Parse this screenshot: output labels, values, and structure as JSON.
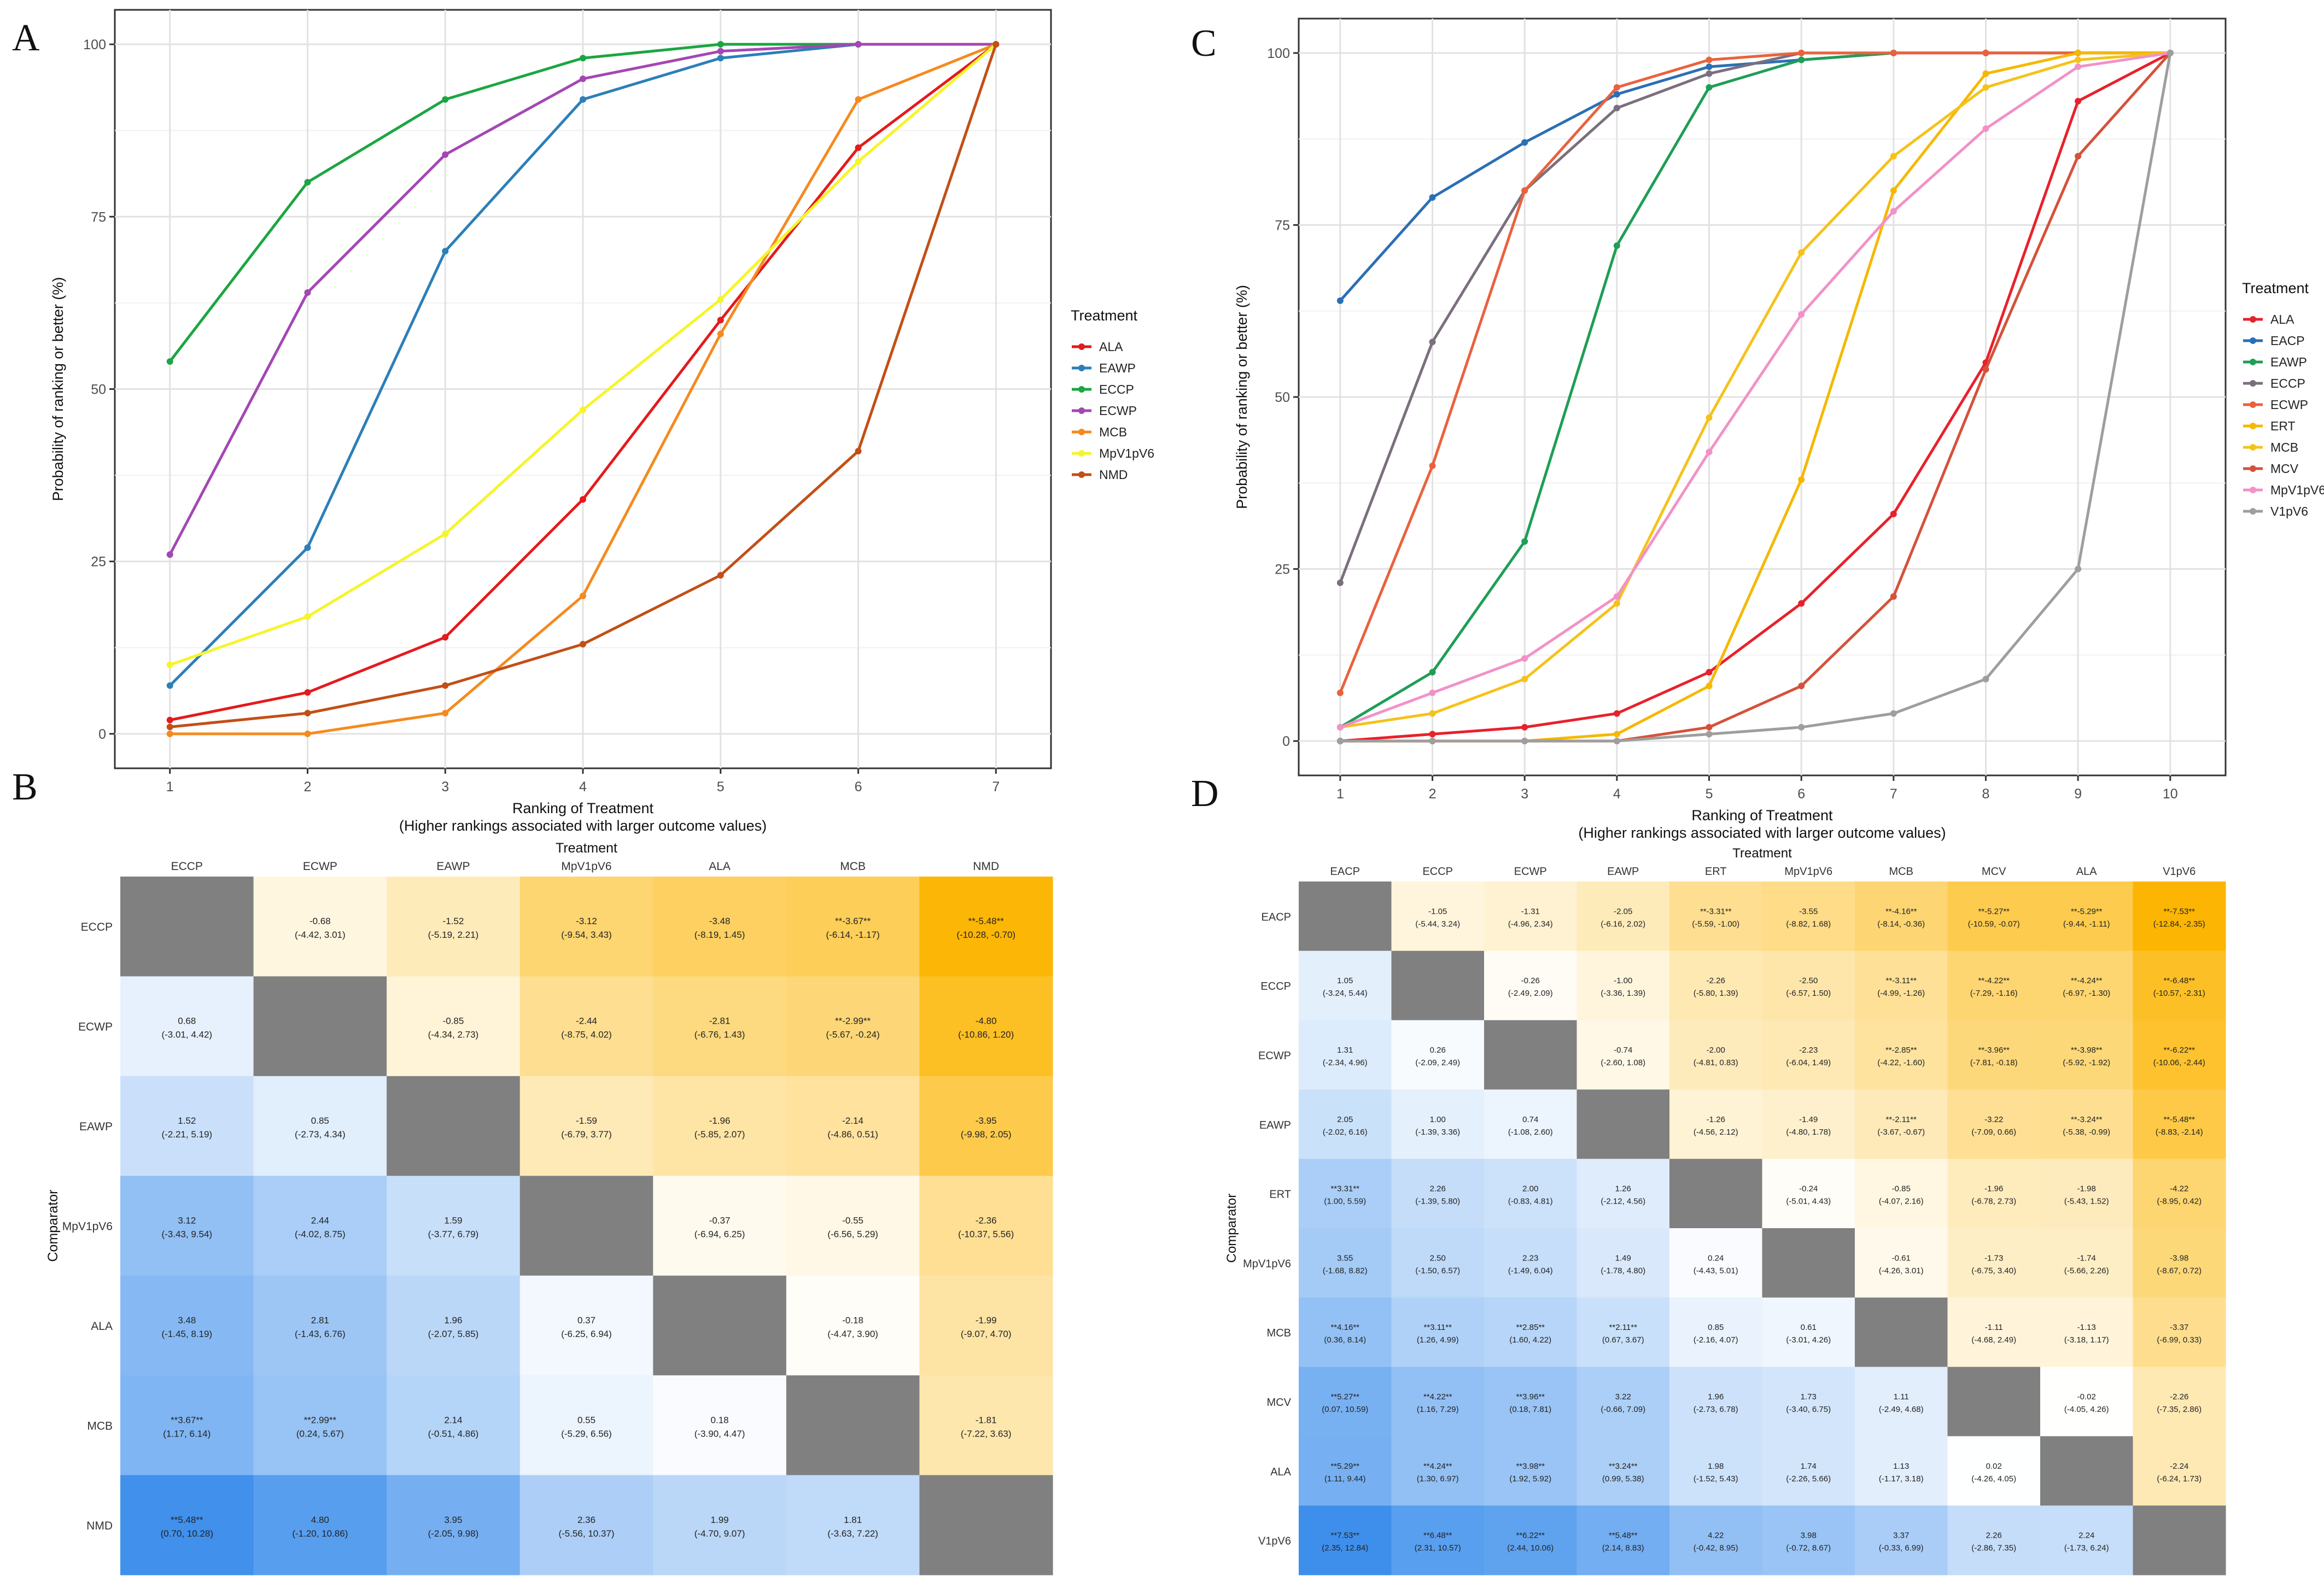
{
  "panels": {
    "a": {
      "letter": "A"
    },
    "b": {
      "letter": "B"
    },
    "c": {
      "letter": "C"
    },
    "d": {
      "letter": "D"
    }
  },
  "chart_data": [
    {
      "id": "A",
      "type": "line",
      "xlabel": "Ranking of Treatment",
      "xlabel2": "(Higher rankings associated with larger outcome values)",
      "ylabel": "Probability of ranking or better (%)",
      "legend_title": "Treatment",
      "x": [
        1,
        2,
        3,
        4,
        5,
        6,
        7
      ],
      "xlim": [
        0.6,
        7.4
      ],
      "ylim": [
        -5,
        105
      ],
      "yticks": [
        0,
        25,
        50,
        75,
        100
      ],
      "series": [
        {
          "name": "ALA",
          "color": "#e41a1c",
          "values": [
            2,
            6,
            14,
            34,
            60,
            85,
            100
          ]
        },
        {
          "name": "EAWP",
          "color": "#2c7fb8",
          "values": [
            7,
            27,
            70,
            92,
            98,
            100,
            100
          ]
        },
        {
          "name": "ECCP",
          "color": "#1ba641",
          "values": [
            54,
            80,
            92,
            98,
            100,
            100,
            100
          ]
        },
        {
          "name": "ECWP",
          "color": "#a347b3",
          "values": [
            26,
            64,
            84,
            95,
            99,
            100,
            100
          ]
        },
        {
          "name": "MCB",
          "color": "#f58a1f",
          "values": [
            0,
            0,
            3,
            20,
            58,
            92,
            100
          ]
        },
        {
          "name": "MpV1pV6",
          "color": "#f5f52a",
          "values": [
            10,
            17,
            29,
            47,
            63,
            83,
            100
          ]
        },
        {
          "name": "NMD",
          "color": "#c24f16",
          "values": [
            1,
            3,
            7,
            13,
            23,
            41,
            100
          ]
        }
      ]
    },
    {
      "id": "C",
      "type": "line",
      "xlabel": "Ranking of Treatment",
      "xlabel2": "(Higher rankings associated with larger outcome values)",
      "ylabel": "Probability of ranking or better (%)",
      "legend_title": "Treatment",
      "x": [
        1,
        2,
        3,
        4,
        5,
        6,
        7,
        8,
        9,
        10
      ],
      "xlim": [
        0.55,
        10.6
      ],
      "ylim": [
        -5,
        105
      ],
      "yticks": [
        0,
        25,
        50,
        75,
        100
      ],
      "series": [
        {
          "name": "ALA",
          "color": "#e8212b",
          "values": [
            0,
            1,
            2,
            4,
            10,
            20,
            33,
            55,
            93,
            100
          ]
        },
        {
          "name": "EACP",
          "color": "#2a6fb5",
          "values": [
            64,
            79,
            87,
            94,
            98,
            99,
            100,
            100,
            100,
            100
          ]
        },
        {
          "name": "EAWP",
          "color": "#1e9e56",
          "values": [
            2,
            10,
            29,
            72,
            95,
            99,
            100,
            100,
            100,
            100
          ]
        },
        {
          "name": "ECCP",
          "color": "#7b6f7d",
          "values": [
            23,
            58,
            80,
            92,
            97,
            100,
            100,
            100,
            100,
            100
          ]
        },
        {
          "name": "ECWP",
          "color": "#e9623e",
          "values": [
            7,
            40,
            80,
            95,
            99,
            100,
            100,
            100,
            100,
            100
          ]
        },
        {
          "name": "ERT",
          "color": "#f5b800",
          "values": [
            0,
            0,
            0,
            1,
            8,
            38,
            80,
            97,
            100,
            100
          ]
        },
        {
          "name": "MCB",
          "color": "#f5c21a",
          "values": [
            2,
            4,
            9,
            20,
            47,
            71,
            85,
            95,
            99,
            100
          ]
        },
        {
          "name": "MCV",
          "color": "#d4523a",
          "values": [
            0,
            0,
            0,
            0,
            2,
            8,
            21,
            54,
            85,
            100
          ]
        },
        {
          "name": "MpV1pV6",
          "color": "#f291c8",
          "values": [
            2,
            7,
            12,
            21,
            42,
            62,
            77,
            89,
            98,
            100
          ]
        },
        {
          "name": "V1pV6",
          "color": "#9e9e9e",
          "values": [
            0,
            0,
            0,
            0,
            1,
            2,
            4,
            9,
            25,
            100
          ]
        }
      ]
    },
    {
      "id": "B",
      "type": "heatmap",
      "title": "Treatment",
      "ylabel": "Comparator",
      "treatments": [
        "ECCP",
        "ECWP",
        "EAWP",
        "MpV1pV6",
        "ALA",
        "MCB",
        "NMD"
      ],
      "comparators": [
        "ECCP",
        "ECWP",
        "EAWP",
        "MpV1pV6",
        "ALA",
        "MCB",
        "NMD"
      ],
      "values": [
        [
          null,
          -0.68,
          -1.52,
          -3.12,
          -3.48,
          -3.67,
          -5.48
        ],
        [
          0.68,
          null,
          -0.85,
          -2.44,
          -2.81,
          -2.99,
          -4.8
        ],
        [
          1.52,
          0.85,
          null,
          -1.59,
          -1.96,
          -2.14,
          -3.95
        ],
        [
          3.12,
          2.44,
          1.59,
          null,
          -0.37,
          -0.55,
          -2.36
        ],
        [
          3.48,
          2.81,
          1.96,
          0.37,
          null,
          -0.18,
          -1.99
        ],
        [
          3.67,
          2.99,
          2.14,
          0.55,
          0.18,
          null,
          -1.81
        ],
        [
          5.48,
          4.8,
          3.95,
          2.36,
          1.99,
          1.81,
          null
        ]
      ],
      "labels": [
        [
          null,
          "-0.68",
          "-1.52",
          "-3.12",
          "-3.48",
          "**-3.67**",
          "**-5.48**"
        ],
        [
          "0.68",
          null,
          "-0.85",
          "-2.44",
          "-2.81",
          "**-2.99**",
          "-4.80"
        ],
        [
          "1.52",
          "0.85",
          null,
          "-1.59",
          "-1.96",
          "-2.14",
          "-3.95"
        ],
        [
          "3.12",
          "2.44",
          "1.59",
          null,
          "-0.37",
          "-0.55",
          "-2.36"
        ],
        [
          "3.48",
          "2.81",
          "1.96",
          "0.37",
          null,
          "-0.18",
          "-1.99"
        ],
        [
          "**3.67**",
          "**2.99**",
          "2.14",
          "0.55",
          "0.18",
          null,
          "-1.81"
        ],
        [
          "**5.48**",
          "4.80",
          "3.95",
          "2.36",
          "1.99",
          "1.81",
          null
        ]
      ],
      "ci": [
        [
          null,
          "(-4.42, 3.01)",
          "(-5.19, 2.21)",
          "(-9.54, 3.43)",
          "(-8.19, 1.45)",
          "(-6.14, -1.17)",
          "(-10.28, -0.70)"
        ],
        [
          "(-3.01, 4.42)",
          null,
          "(-4.34, 2.73)",
          "(-8.75, 4.02)",
          "(-6.76, 1.43)",
          "(-5.67, -0.24)",
          "(-10.86, 1.20)"
        ],
        [
          "(-2.21, 5.19)",
          "(-2.73, 4.34)",
          null,
          "(-6.79, 3.77)",
          "(-5.85, 2.07)",
          "(-4.86, 0.51)",
          "(-9.98, 2.05)"
        ],
        [
          "(-3.43, 9.54)",
          "(-4.02, 8.75)",
          "(-3.77, 6.79)",
          null,
          "(-6.94, 6.25)",
          "(-6.56, 5.29)",
          "(-10.37, 5.56)"
        ],
        [
          "(-1.45, 8.19)",
          "(-1.43, 6.76)",
          "(-2.07, 5.85)",
          "(-6.25, 6.94)",
          null,
          "(-4.47, 3.90)",
          "(-9.07, 4.70)"
        ],
        [
          "(1.17, 6.14)",
          "(0.24, 5.67)",
          "(-0.51, 4.86)",
          "(-5.29, 6.56)",
          "(-3.90, 4.47)",
          null,
          "(-7.22, 3.63)"
        ],
        [
          "(0.70, 10.28)",
          "(-1.20, 10.86)",
          "(-2.05, 9.98)",
          "(-5.56, 10.37)",
          "(-4.70, 9.07)",
          "(-3.63, 7.22)",
          null
        ]
      ]
    },
    {
      "id": "D",
      "type": "heatmap",
      "title": "Treatment",
      "ylabel": "Comparator",
      "treatments": [
        "EACP",
        "ECCP",
        "ECWP",
        "EAWP",
        "ERT",
        "MpV1pV6",
        "MCB",
        "MCV",
        "ALA",
        "V1pV6"
      ],
      "comparators": [
        "EACP",
        "ECCP",
        "ECWP",
        "EAWP",
        "ERT",
        "MpV1pV6",
        "MCB",
        "MCV",
        "ALA",
        "V1pV6"
      ],
      "values": [
        [
          null,
          -1.05,
          -1.31,
          -2.05,
          -3.31,
          -3.55,
          -4.16,
          -5.27,
          -5.29,
          -7.53
        ],
        [
          1.05,
          null,
          -0.26,
          -1.0,
          -2.26,
          -2.5,
          -3.11,
          -4.22,
          -4.24,
          -6.48
        ],
        [
          1.31,
          0.26,
          null,
          -0.74,
          -2.0,
          -2.23,
          -2.85,
          -3.96,
          -3.98,
          -6.22
        ],
        [
          2.05,
          1.0,
          0.74,
          null,
          -1.26,
          -1.49,
          -2.11,
          -3.22,
          -3.24,
          -5.48
        ],
        [
          3.31,
          2.26,
          2.0,
          1.26,
          null,
          -0.24,
          -0.85,
          -1.96,
          -1.98,
          -4.22
        ],
        [
          3.55,
          2.5,
          2.23,
          1.49,
          0.24,
          null,
          -0.61,
          -1.73,
          -1.74,
          -3.98
        ],
        [
          4.16,
          3.11,
          2.85,
          2.11,
          0.85,
          0.61,
          null,
          -1.11,
          -1.13,
          -3.37
        ],
        [
          5.27,
          4.22,
          3.96,
          3.22,
          1.96,
          1.73,
          1.11,
          null,
          -0.02,
          -2.26
        ],
        [
          5.29,
          4.24,
          3.98,
          3.24,
          1.98,
          1.74,
          1.13,
          0.02,
          null,
          -2.24
        ],
        [
          7.53,
          6.48,
          6.22,
          5.48,
          4.22,
          3.98,
          3.37,
          2.26,
          2.24,
          null
        ]
      ],
      "labels": [
        [
          null,
          "-1.05",
          "-1.31",
          "-2.05",
          "**-3.31**",
          "-3.55",
          "**-4.16**",
          "**-5.27**",
          "**-5.29**",
          "**-7.53**"
        ],
        [
          "1.05",
          null,
          "-0.26",
          "-1.00",
          "-2.26",
          "-2.50",
          "**-3.11**",
          "**-4.22**",
          "**-4.24**",
          "**-6.48**"
        ],
        [
          "1.31",
          "0.26",
          null,
          "-0.74",
          "-2.00",
          "-2.23",
          "**-2.85**",
          "**-3.96**",
          "**-3.98**",
          "**-6.22**"
        ],
        [
          "2.05",
          "1.00",
          "0.74",
          null,
          "-1.26",
          "-1.49",
          "**-2.11**",
          "-3.22",
          "**-3.24**",
          "**-5.48**"
        ],
        [
          "**3.31**",
          "2.26",
          "2.00",
          "1.26",
          null,
          "-0.24",
          "-0.85",
          "-1.96",
          "-1.98",
          "-4.22"
        ],
        [
          "3.55",
          "2.50",
          "2.23",
          "1.49",
          "0.24",
          null,
          "-0.61",
          "-1.73",
          "-1.74",
          "-3.98"
        ],
        [
          "**4.16**",
          "**3.11**",
          "**2.85**",
          "**2.11**",
          "0.85",
          "0.61",
          null,
          "-1.11",
          "-1.13",
          "-3.37"
        ],
        [
          "**5.27**",
          "**4.22**",
          "**3.96**",
          "3.22",
          "1.96",
          "1.73",
          "1.11",
          null,
          "-0.02",
          "-2.26"
        ],
        [
          "**5.29**",
          "**4.24**",
          "**3.98**",
          "**3.24**",
          "1.98",
          "1.74",
          "1.13",
          "0.02",
          null,
          "-2.24"
        ],
        [
          "**7.53**",
          "**6.48**",
          "**6.22**",
          "**5.48**",
          "4.22",
          "3.98",
          "3.37",
          "2.26",
          "2.24",
          null
        ]
      ],
      "ci": [
        [
          null,
          "(-5.44, 3.24)",
          "(-4.96, 2.34)",
          "(-6.16, 2.02)",
          "(-5.59, -1.00)",
          "(-8.82, 1.68)",
          "(-8.14, -0.36)",
          "(-10.59, -0.07)",
          "(-9.44, -1.11)",
          "(-12.84, -2.35)"
        ],
        [
          "(-3.24, 5.44)",
          null,
          "(-2.49, 2.09)",
          "(-3.36, 1.39)",
          "(-5.80, 1.39)",
          "(-6.57, 1.50)",
          "(-4.99, -1.26)",
          "(-7.29, -1.16)",
          "(-6.97, -1.30)",
          "(-10.57, -2.31)"
        ],
        [
          "(-2.34, 4.96)",
          "(-2.09, 2.49)",
          null,
          "(-2.60, 1.08)",
          "(-4.81, 0.83)",
          "(-6.04, 1.49)",
          "(-4.22, -1.60)",
          "(-7.81, -0.18)",
          "(-5.92, -1.92)",
          "(-10.06, -2.44)"
        ],
        [
          "(-2.02, 6.16)",
          "(-1.39, 3.36)",
          "(-1.08, 2.60)",
          null,
          "(-4.56, 2.12)",
          "(-4.80, 1.78)",
          "(-3.67, -0.67)",
          "(-7.09, 0.66)",
          "(-5.38, -0.99)",
          "(-8.83, -2.14)"
        ],
        [
          "(1.00, 5.59)",
          "(-1.39, 5.80)",
          "(-0.83, 4.81)",
          "(-2.12, 4.56)",
          null,
          "(-5.01, 4.43)",
          "(-4.07, 2.16)",
          "(-6.78, 2.73)",
          "(-5.43, 1.52)",
          "(-8.95, 0.42)"
        ],
        [
          "(-1.68, 8.82)",
          "(-1.50, 6.57)",
          "(-1.49, 6.04)",
          "(-1.78, 4.80)",
          "(-4.43, 5.01)",
          null,
          "(-4.26, 3.01)",
          "(-6.75, 3.40)",
          "(-5.66, 2.26)",
          "(-8.67, 0.72)"
        ],
        [
          "(0.36, 8.14)",
          "(1.26, 4.99)",
          "(1.60, 4.22)",
          "(0.67, 3.67)",
          "(-2.16, 4.07)",
          "(-3.01, 4.26)",
          null,
          "(-4.68, 2.49)",
          "(-3.18, 1.17)",
          "(-6.99, 0.33)"
        ],
        [
          "(0.07, 10.59)",
          "(1.16, 7.29)",
          "(0.18, 7.81)",
          "(-0.66, 7.09)",
          "(-2.73, 6.78)",
          "(-3.40, 6.75)",
          "(-2.49, 4.68)",
          null,
          "(-4.05, 4.26)",
          "(-7.35, 2.86)"
        ],
        [
          "(1.11, 9.44)",
          "(1.30, 6.97)",
          "(1.92, 5.92)",
          "(0.99, 5.38)",
          "(-1.52, 5.43)",
          "(-2.26, 5.66)",
          "(-1.17, 3.18)",
          "(-4.26, 4.05)",
          null,
          "(-6.24, 1.73)"
        ],
        [
          "(2.35, 12.84)",
          "(2.31, 10.57)",
          "(2.44, 10.06)",
          "(2.14, 8.83)",
          "(-0.42, 8.95)",
          "(-0.72, 8.67)",
          "(-0.33, 6.99)",
          "(-2.86, 7.35)",
          "(-1.73, 6.24)",
          null
        ]
      ]
    }
  ]
}
